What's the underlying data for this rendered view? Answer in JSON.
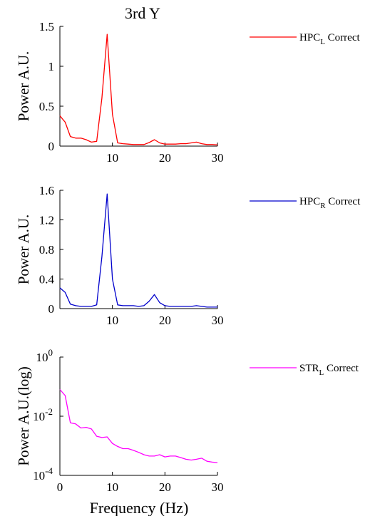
{
  "figure_title": "3rd Y",
  "x_axis_label": "Frequency (Hz)",
  "chart_data": [
    {
      "type": "line",
      "ylabel": "Power A.U.",
      "xlim": [
        0,
        30
      ],
      "ylim": [
        0,
        1.5
      ],
      "yscale": "linear",
      "x_ticks": [
        "10",
        "20",
        "30"
      ],
      "y_ticks": [
        "0",
        "0.5",
        "1",
        "1.5"
      ],
      "y_tick_values": [
        0,
        0.5,
        1,
        1.5
      ],
      "grid": false,
      "legend_position": "right",
      "series": [
        {
          "name": "HPC_L Correct",
          "legend_main": "HPC",
          "legend_sub": "L",
          "legend_suffix": " Correct",
          "color": "#ff0000",
          "x": [
            0,
            1,
            2,
            3,
            4,
            5,
            6,
            7,
            8,
            9,
            10,
            11,
            12,
            13,
            14,
            15,
            16,
            17,
            18,
            19,
            20,
            21,
            22,
            23,
            24,
            25,
            26,
            27,
            28,
            29,
            30
          ],
          "y": [
            0.38,
            0.3,
            0.12,
            0.1,
            0.1,
            0.08,
            0.05,
            0.06,
            0.6,
            1.4,
            0.4,
            0.04,
            0.03,
            0.025,
            0.02,
            0.02,
            0.02,
            0.045,
            0.08,
            0.04,
            0.025,
            0.025,
            0.025,
            0.03,
            0.03,
            0.04,
            0.05,
            0.03,
            0.02,
            0.02,
            0.015
          ]
        }
      ]
    },
    {
      "type": "line",
      "ylabel": "Power A.U.",
      "xlim": [
        0,
        30
      ],
      "ylim": [
        0,
        1.6
      ],
      "yscale": "linear",
      "x_ticks": [
        "10",
        "20",
        "30"
      ],
      "y_ticks": [
        "0",
        "0.4",
        "0.8",
        "1.2",
        "1.6"
      ],
      "y_tick_values": [
        0,
        0.4,
        0.8,
        1.2,
        1.6
      ],
      "grid": false,
      "legend_position": "right",
      "series": [
        {
          "name": "HPC_R Correct",
          "legend_main": "HPC",
          "legend_sub": "R",
          "legend_suffix": " Correct",
          "color": "#0000cc",
          "x": [
            0,
            1,
            2,
            3,
            4,
            5,
            6,
            7,
            8,
            9,
            10,
            11,
            12,
            13,
            14,
            15,
            16,
            17,
            18,
            19,
            20,
            21,
            22,
            23,
            24,
            25,
            26,
            27,
            28,
            29,
            30
          ],
          "y": [
            0.28,
            0.22,
            0.06,
            0.04,
            0.03,
            0.03,
            0.03,
            0.05,
            0.7,
            1.55,
            0.4,
            0.05,
            0.04,
            0.04,
            0.04,
            0.03,
            0.04,
            0.1,
            0.19,
            0.08,
            0.04,
            0.03,
            0.03,
            0.03,
            0.03,
            0.03,
            0.04,
            0.03,
            0.02,
            0.02,
            0.02
          ]
        }
      ]
    },
    {
      "type": "line",
      "ylabel": "Power A.U.(log)",
      "xlabel": "Frequency (Hz)",
      "xlim": [
        0,
        30
      ],
      "ylim": [
        0.0001,
        1
      ],
      "yscale": "log",
      "x_ticks": [
        "0",
        "10",
        "20",
        "30"
      ],
      "y_tick_exponents": [
        0,
        -2,
        -4
      ],
      "y_tick_base": "10",
      "y_tick_sup": [
        "0",
        "-2",
        "-4"
      ],
      "grid": false,
      "legend_position": "right",
      "series": [
        {
          "name": "STR_L Correct",
          "legend_main": "STR",
          "legend_sub": "L",
          "legend_suffix": " Correct",
          "color": "#ff00ff",
          "x": [
            0,
            1,
            2,
            3,
            4,
            5,
            6,
            7,
            8,
            9,
            10,
            11,
            12,
            13,
            14,
            15,
            16,
            17,
            18,
            19,
            20,
            21,
            22,
            23,
            24,
            25,
            26,
            27,
            28,
            29,
            30
          ],
          "y": [
            0.08,
            0.05,
            0.006,
            0.0055,
            0.004,
            0.0042,
            0.0037,
            0.0021,
            0.0019,
            0.002,
            0.0012,
            0.00095,
            0.0008,
            0.0008,
            0.0007,
            0.0006,
            0.0005,
            0.00045,
            0.00045,
            0.0005,
            0.00042,
            0.00045,
            0.00045,
            0.0004,
            0.00035,
            0.00033,
            0.00035,
            0.00038,
            0.0003,
            0.00028,
            0.00027
          ]
        }
      ]
    }
  ]
}
